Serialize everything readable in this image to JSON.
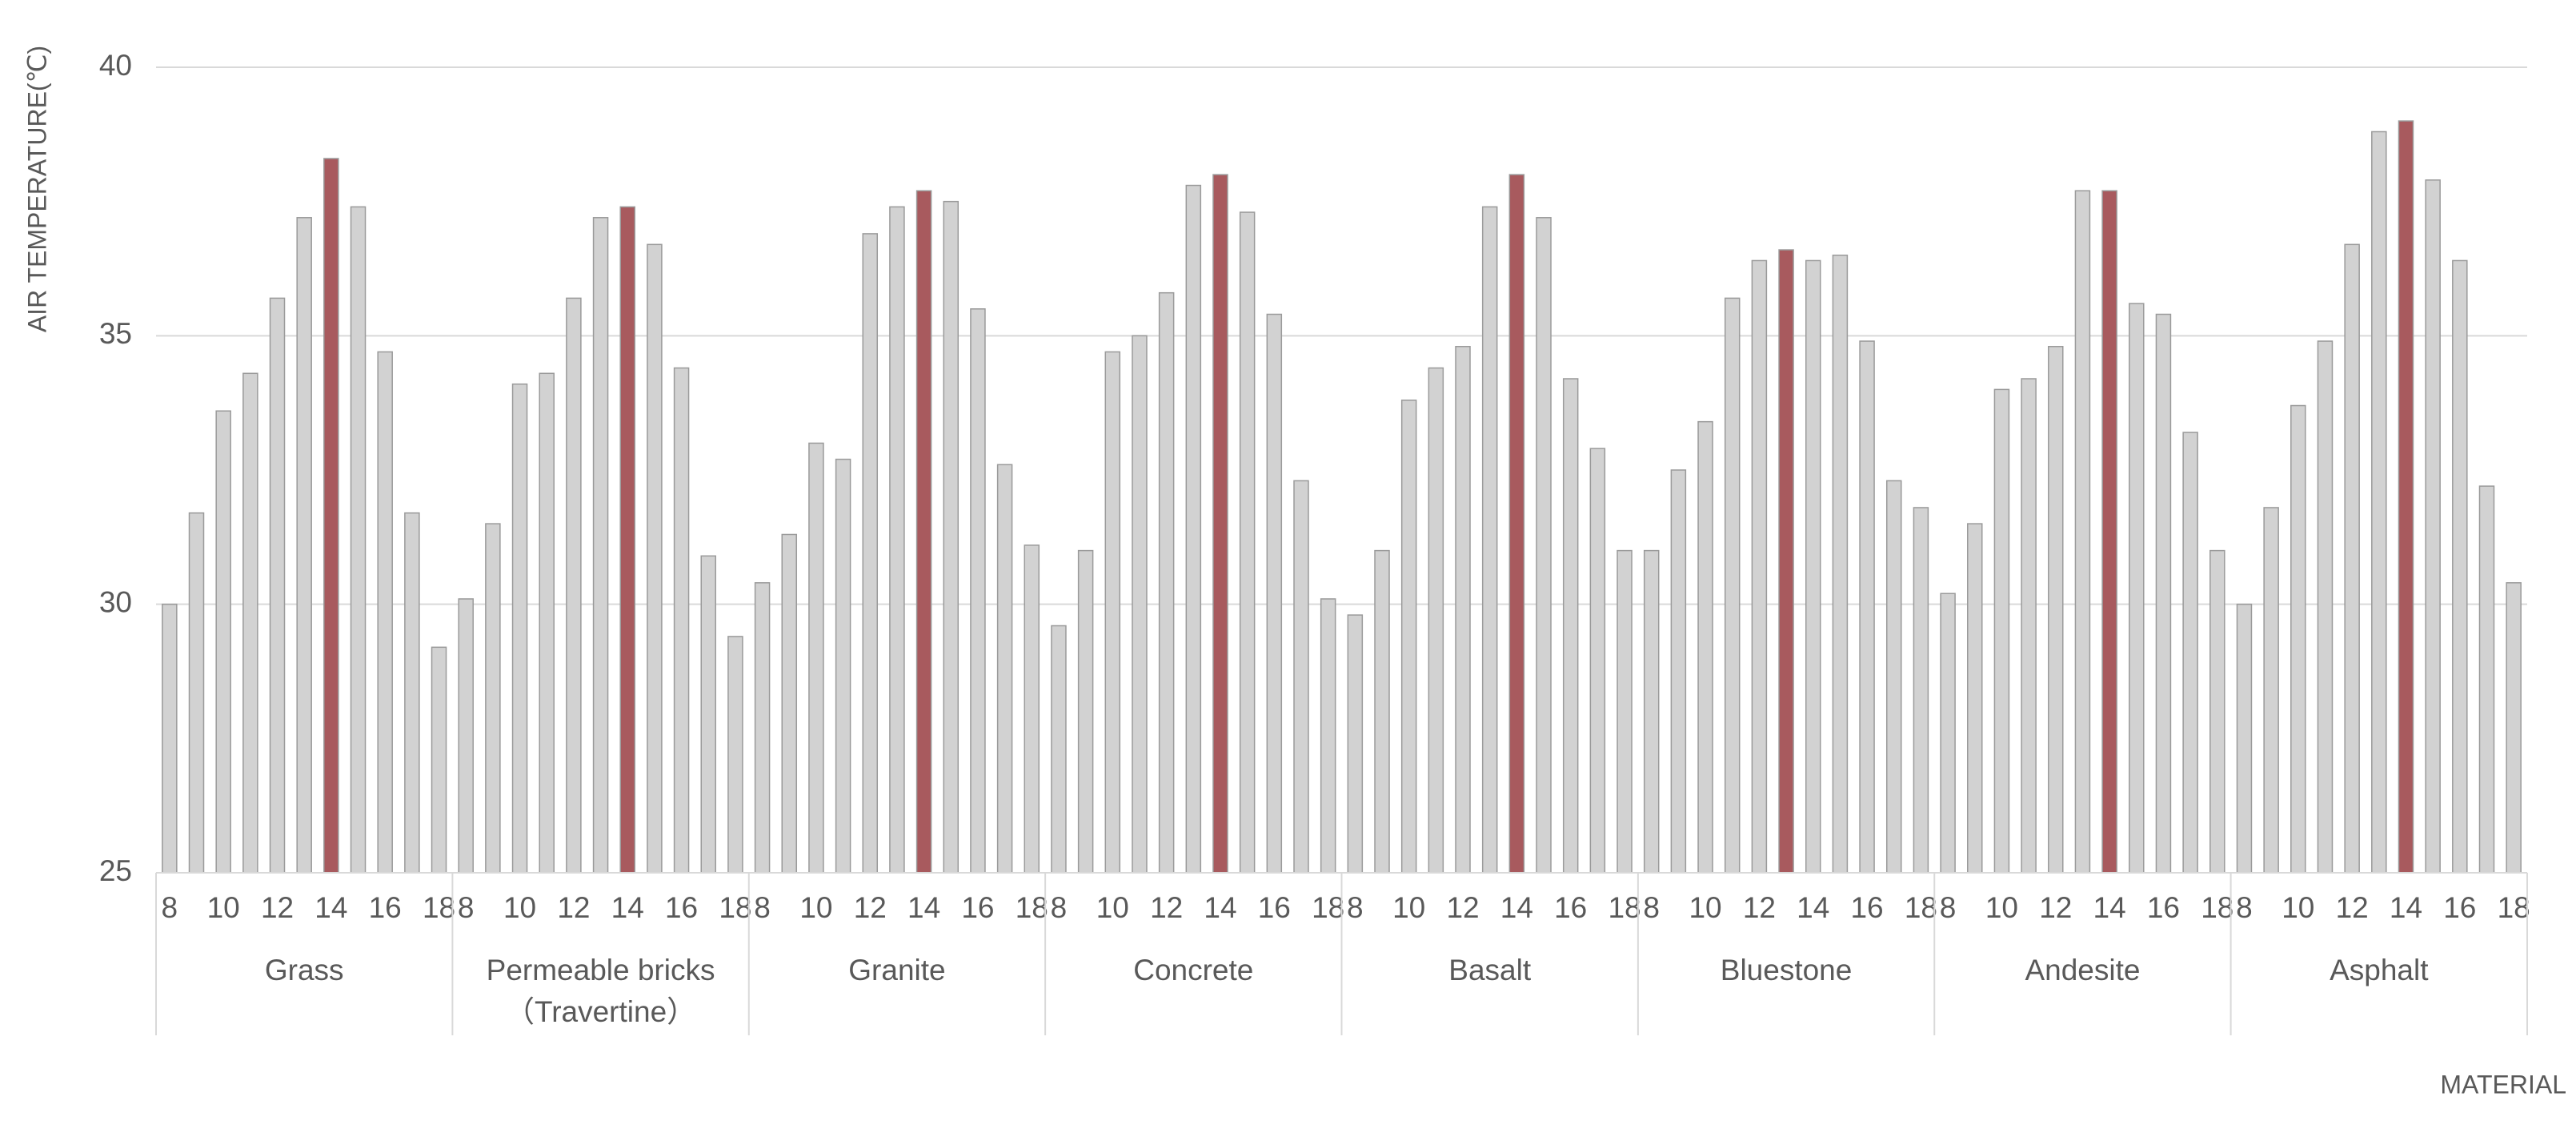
{
  "chart_data": {
    "type": "grouped-bar",
    "y_label": "AIR TEMPERATURE(℃)",
    "x_label": "MATERIAL",
    "ylim": [
      25,
      40
    ],
    "yticks": [
      25,
      30,
      35,
      40
    ],
    "grid": true,
    "bar_stroke": "#9a9a9a",
    "groups": [
      {
        "name": "Grass",
        "categories": [
          "8",
          null,
          "10",
          null,
          "12",
          null,
          "14",
          null,
          "16",
          null,
          "18"
        ],
        "values": [
          30.0,
          31.7,
          33.6,
          34.3,
          35.7,
          37.2,
          38.3,
          37.4,
          34.7,
          31.7,
          29.2
        ],
        "colors": [
          "#d2d2d2",
          "#d2d2d2",
          "#d2d2d2",
          "#d2d2d2",
          "#d2d2d2",
          "#d2d2d2",
          "#a85a5e",
          "#d2d2d2",
          "#d2d2d2",
          "#d2d2d2",
          "#d2d2d2"
        ]
      },
      {
        "name": "Permeable bricks\n（Travertine）",
        "categories": [
          "8",
          null,
          "10",
          null,
          "12",
          null,
          "14",
          null,
          "16",
          null,
          "18"
        ],
        "values": [
          30.1,
          31.5,
          34.1,
          34.3,
          35.7,
          37.2,
          37.4,
          36.7,
          34.4,
          30.9,
          29.4
        ],
        "colors": [
          "#d2d2d2",
          "#d2d2d2",
          "#d2d2d2",
          "#d2d2d2",
          "#d2d2d2",
          "#d2d2d2",
          "#a85a5e",
          "#d2d2d2",
          "#d2d2d2",
          "#d2d2d2",
          "#d2d2d2"
        ]
      },
      {
        "name": "Granite",
        "categories": [
          "8",
          null,
          "10",
          null,
          "12",
          null,
          "14",
          null,
          "16",
          null,
          "18"
        ],
        "values": [
          30.4,
          31.3,
          33.0,
          32.7,
          36.9,
          37.4,
          37.7,
          37.5,
          35.5,
          32.6,
          31.1
        ],
        "colors": [
          "#d2d2d2",
          "#d2d2d2",
          "#d2d2d2",
          "#d2d2d2",
          "#d2d2d2",
          "#d2d2d2",
          "#a85a5e",
          "#d2d2d2",
          "#d2d2d2",
          "#d2d2d2",
          "#d2d2d2"
        ]
      },
      {
        "name": "Concrete",
        "categories": [
          "8",
          null,
          "10",
          null,
          "12",
          null,
          "14",
          null,
          "16",
          null,
          "18"
        ],
        "values": [
          29.6,
          31.0,
          34.7,
          35.0,
          35.8,
          37.8,
          38.0,
          37.3,
          35.4,
          32.3,
          30.1
        ],
        "colors": [
          "#d2d2d2",
          "#d2d2d2",
          "#d2d2d2",
          "#d2d2d2",
          "#d2d2d2",
          "#d2d2d2",
          "#a85a5e",
          "#d2d2d2",
          "#d2d2d2",
          "#d2d2d2",
          "#d2d2d2"
        ]
      },
      {
        "name": "Basalt",
        "categories": [
          "8",
          null,
          "10",
          null,
          "12",
          null,
          "14",
          null,
          "16",
          null,
          "18"
        ],
        "values": [
          29.8,
          31.0,
          33.8,
          34.4,
          34.8,
          37.4,
          38.0,
          37.2,
          34.2,
          32.9,
          31.0
        ],
        "colors": [
          "#d2d2d2",
          "#d2d2d2",
          "#d2d2d2",
          "#d2d2d2",
          "#d2d2d2",
          "#d2d2d2",
          "#a85a5e",
          "#d2d2d2",
          "#d2d2d2",
          "#d2d2d2",
          "#d2d2d2"
        ]
      },
      {
        "name": "Bluestone",
        "categories": [
          "8",
          null,
          "10",
          null,
          "12",
          null,
          "14",
          null,
          "16",
          null,
          "18"
        ],
        "values": [
          31.0,
          32.5,
          33.4,
          35.7,
          36.4,
          36.6,
          36.4,
          36.5,
          34.9,
          32.3,
          31.8
        ],
        "colors": [
          "#d2d2d2",
          "#d2d2d2",
          "#d2d2d2",
          "#d2d2d2",
          "#d2d2d2",
          "#a85a5e",
          "#d2d2d2",
          "#d2d2d2",
          "#d2d2d2",
          "#d2d2d2",
          "#d2d2d2"
        ]
      },
      {
        "name": "Andesite",
        "categories": [
          "8",
          null,
          "10",
          null,
          "12",
          null,
          "14",
          null,
          "16",
          null,
          "18"
        ],
        "values": [
          30.2,
          31.5,
          34.0,
          34.2,
          34.8,
          37.7,
          37.7,
          35.6,
          35.4,
          33.2,
          31.0
        ],
        "colors": [
          "#d2d2d2",
          "#d2d2d2",
          "#d2d2d2",
          "#d2d2d2",
          "#d2d2d2",
          "#d2d2d2",
          "#a85a5e",
          "#d2d2d2",
          "#d2d2d2",
          "#d2d2d2",
          "#d2d2d2"
        ]
      },
      {
        "name": "Asphalt",
        "categories": [
          "8",
          null,
          "10",
          null,
          "12",
          null,
          "14",
          null,
          "16",
          null,
          "18"
        ],
        "values": [
          30.0,
          31.8,
          33.7,
          34.9,
          36.7,
          38.8,
          39.0,
          37.9,
          36.4,
          32.2,
          30.4
        ],
        "colors": [
          "#d2d2d2",
          "#d2d2d2",
          "#d2d2d2",
          "#d2d2d2",
          "#d2d2d2",
          "#d2d2d2",
          "#a85a5e",
          "#d2d2d2",
          "#d2d2d2",
          "#d2d2d2",
          "#d2d2d2"
        ]
      }
    ]
  }
}
